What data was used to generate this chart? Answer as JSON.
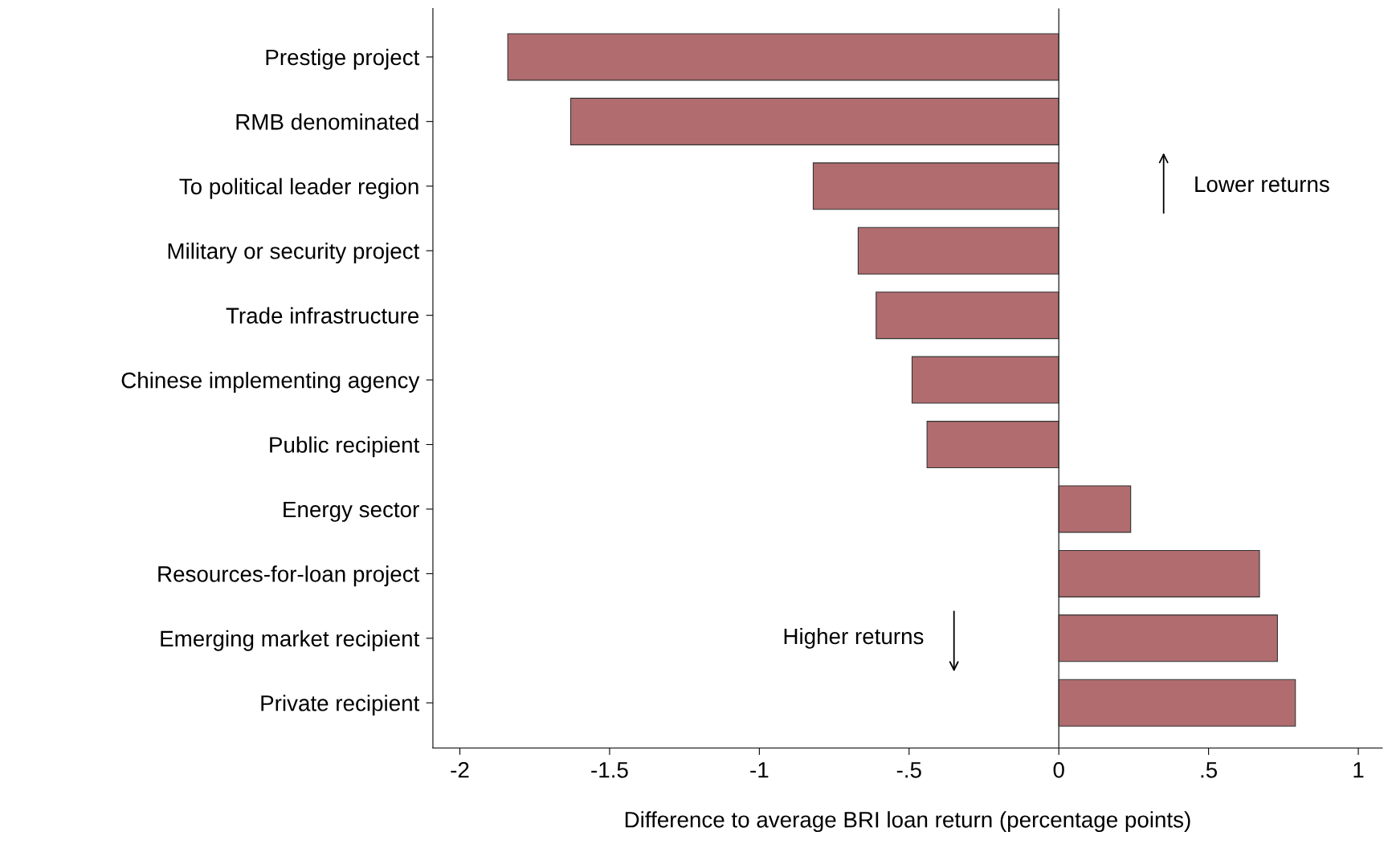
{
  "chart_data": {
    "type": "bar",
    "orientation": "horizontal",
    "categories": [
      "Prestige project",
      "RMB denominated",
      "To political leader region",
      "Military or security project",
      "Trade infrastructure",
      "Chinese implementing agency",
      "Public recipient",
      "Energy sector",
      "Resources-for-loan project",
      "Emerging market recipient",
      "Private recipient"
    ],
    "values": [
      -1.84,
      -1.63,
      -0.82,
      -0.67,
      -0.61,
      -0.49,
      -0.44,
      0.24,
      0.67,
      0.73,
      0.79
    ],
    "color": "#b06c6f",
    "xlabel": "Difference to average BRI loan return (percentage points)",
    "xlim": [
      -2.09,
      1.08
    ],
    "xticks": [
      {
        "value": -2,
        "label": "-2"
      },
      {
        "value": -1.5,
        "label": "-1.5"
      },
      {
        "value": -1,
        "label": "-1"
      },
      {
        "value": -0.5,
        "label": "-.5"
      },
      {
        "value": 0,
        "label": "0"
      },
      {
        "value": 0.5,
        "label": ".5"
      },
      {
        "value": 1,
        "label": "1"
      }
    ],
    "ref_lines": [
      {
        "axis": "x",
        "value": 0,
        "color": "#333333"
      }
    ],
    "annotations": [
      "Lower returns",
      "Higher returns"
    ],
    "grid": false,
    "legend": false
  }
}
